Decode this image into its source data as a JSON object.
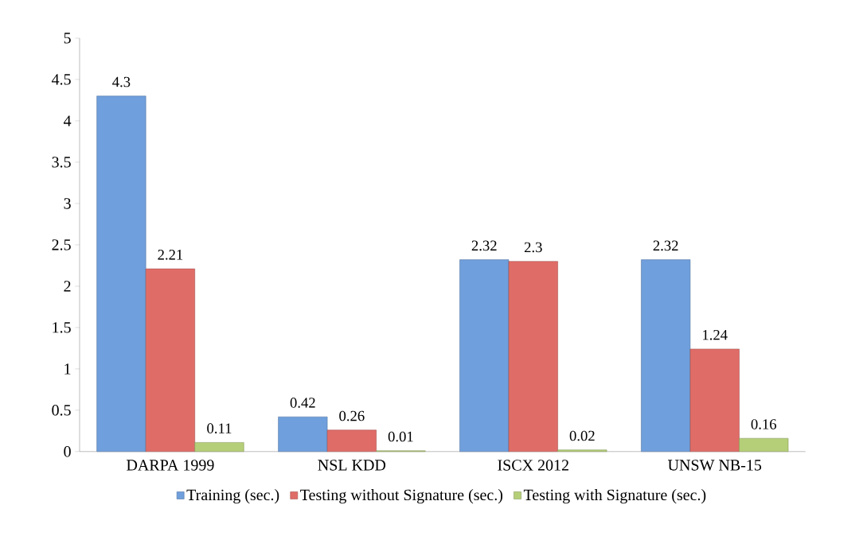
{
  "chart_data": {
    "type": "bar",
    "categories": [
      "DARPA 1999",
      "NSL KDD",
      "ISCX 2012",
      "UNSW NB-15"
    ],
    "series": [
      {
        "name": "Training (sec.)",
        "color": "#6f9fdc",
        "values": [
          4.3,
          0.42,
          2.32,
          2.32
        ]
      },
      {
        "name": "Testing without Signature (sec.)",
        "color": "#e06c67",
        "values": [
          2.21,
          0.26,
          2.3,
          1.24
        ]
      },
      {
        "name": "Testing with Signature (sec.)",
        "color": "#b5cf78",
        "values": [
          0.11,
          0.01,
          0.02,
          0.16
        ]
      }
    ],
    "ylim": [
      0,
      5
    ],
    "yticks": [
      0,
      0.5,
      1,
      1.5,
      2,
      2.5,
      3,
      3.5,
      4,
      4.5,
      5
    ],
    "data_labels": true,
    "grid": false,
    "legend": "bottom"
  }
}
